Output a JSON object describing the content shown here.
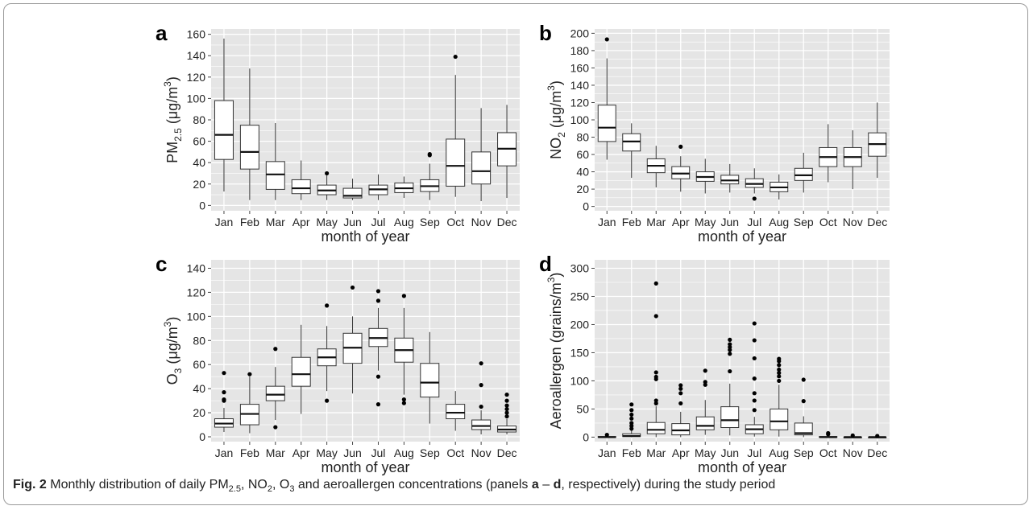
{
  "caption": {
    "figure_label": "Fig. 2",
    "parts": [
      "Monthly distribution of daily PM",
      "2.5",
      ", NO",
      "2",
      ", O",
      "3",
      " and aeroallergen concentrations (panels ",
      "a",
      " – ",
      "d",
      ", respectively) during the study period"
    ]
  },
  "colors": {
    "panel_background": "#e5e5e5",
    "gridline": "#ffffff",
    "box_fill": "#ffffff",
    "box_stroke": "#333333",
    "text": "#222222",
    "outlier": "#000000"
  },
  "chart_data": [
    {
      "type": "box",
      "panel_letter": "a",
      "xlabel": "month of year",
      "ylabel": {
        "base": "PM",
        "sub": "2.5",
        "mid": " (μg/m",
        "sup": "3",
        "end": ")"
      },
      "categories": [
        "Jan",
        "Feb",
        "Mar",
        "Apr",
        "May",
        "Jun",
        "Jul",
        "Aug",
        "Sep",
        "Oct",
        "Nov",
        "Dec"
      ],
      "ylim": [
        -5,
        165
      ],
      "yticks": [
        "0",
        "20",
        "40",
        "60",
        "80",
        "100",
        "120",
        "140",
        "160"
      ],
      "ytick_values": [
        0,
        20,
        40,
        60,
        80,
        100,
        120,
        140,
        160
      ],
      "boxes": [
        {
          "min": 13,
          "q1": 43,
          "median": 66,
          "q3": 98,
          "max": 156,
          "outliers": []
        },
        {
          "min": 5,
          "q1": 34,
          "median": 50,
          "q3": 75,
          "max": 128,
          "outliers": []
        },
        {
          "min": 5,
          "q1": 15,
          "median": 29,
          "q3": 41,
          "max": 77,
          "outliers": []
        },
        {
          "min": 5,
          "q1": 11,
          "median": 16,
          "q3": 24,
          "max": 42,
          "outliers": []
        },
        {
          "min": 5,
          "q1": 10,
          "median": 14,
          "q3": 19,
          "max": 28,
          "outliers": [
            30
          ]
        },
        {
          "min": 5,
          "q1": 7,
          "median": 9,
          "q3": 16,
          "max": 25,
          "outliers": []
        },
        {
          "min": 5,
          "q1": 10,
          "median": 15,
          "q3": 19,
          "max": 29,
          "outliers": []
        },
        {
          "min": 7,
          "q1": 12,
          "median": 16,
          "q3": 21,
          "max": 27,
          "outliers": []
        },
        {
          "min": 5,
          "q1": 13,
          "median": 18,
          "q3": 24,
          "max": 39,
          "outliers": [
            47,
            48
          ]
        },
        {
          "min": 8,
          "q1": 18,
          "median": 37,
          "q3": 62,
          "max": 122,
          "outliers": [
            139
          ]
        },
        {
          "min": 4,
          "q1": 20,
          "median": 32,
          "q3": 50,
          "max": 91,
          "outliers": []
        },
        {
          "min": 7,
          "q1": 37,
          "median": 53,
          "q3": 68,
          "max": 94,
          "outliers": []
        }
      ]
    },
    {
      "type": "box",
      "panel_letter": "b",
      "xlabel": "month of year",
      "ylabel": {
        "base": "NO",
        "sub": "2",
        "mid": " (μg/m",
        "sup": "3",
        "end": ")"
      },
      "categories": [
        "Jan",
        "Feb",
        "Mar",
        "Apr",
        "May",
        "Jun",
        "Jul",
        "Aug",
        "Sep",
        "Oct",
        "Nov",
        "Dec"
      ],
      "ylim": [
        -5,
        205
      ],
      "yticks": [
        "0",
        "20",
        "40",
        "60",
        "80",
        "100",
        "120",
        "140",
        "160",
        "180",
        "200"
      ],
      "ytick_values": [
        0,
        20,
        40,
        60,
        80,
        100,
        120,
        140,
        160,
        180,
        200
      ],
      "boxes": [
        {
          "min": 54,
          "q1": 75,
          "median": 91,
          "q3": 117,
          "max": 171,
          "outliers": [
            193
          ]
        },
        {
          "min": 33,
          "q1": 64,
          "median": 75,
          "q3": 84,
          "max": 96,
          "outliers": []
        },
        {
          "min": 22,
          "q1": 39,
          "median": 47,
          "q3": 55,
          "max": 70,
          "outliers": []
        },
        {
          "min": 17,
          "q1": 32,
          "median": 38,
          "q3": 46,
          "max": 58,
          "outliers": [
            69
          ]
        },
        {
          "min": 15,
          "q1": 29,
          "median": 34,
          "q3": 40,
          "max": 55,
          "outliers": []
        },
        {
          "min": 16,
          "q1": 26,
          "median": 30,
          "q3": 36,
          "max": 49,
          "outliers": []
        },
        {
          "min": 15,
          "q1": 22,
          "median": 26,
          "q3": 32,
          "max": 44,
          "outliers": [
            9
          ]
        },
        {
          "min": 8,
          "q1": 17,
          "median": 22,
          "q3": 28,
          "max": 37,
          "outliers": []
        },
        {
          "min": 16,
          "q1": 30,
          "median": 36,
          "q3": 44,
          "max": 62,
          "outliers": []
        },
        {
          "min": 28,
          "q1": 46,
          "median": 57,
          "q3": 68,
          "max": 95,
          "outliers": []
        },
        {
          "min": 20,
          "q1": 46,
          "median": 57,
          "q3": 68,
          "max": 88,
          "outliers": []
        },
        {
          "min": 33,
          "q1": 58,
          "median": 72,
          "q3": 85,
          "max": 120,
          "outliers": []
        }
      ]
    },
    {
      "type": "box",
      "panel_letter": "c",
      "xlabel": "month of year",
      "ylabel": {
        "base": "O",
        "sub": "3",
        "mid": " (μg/m",
        "sup": "3",
        "end": ")"
      },
      "categories": [
        "Jan",
        "Feb",
        "Mar",
        "Apr",
        "May",
        "Jun",
        "Jul",
        "Aug",
        "Sep",
        "Oct",
        "Nov",
        "Dec"
      ],
      "ylim": [
        -4,
        147
      ],
      "yticks": [
        "0",
        "20",
        "40",
        "60",
        "80",
        "100",
        "120",
        "140"
      ],
      "ytick_values": [
        0,
        20,
        40,
        60,
        80,
        100,
        120,
        140
      ],
      "boxes": [
        {
          "min": 4,
          "q1": 8,
          "median": 11,
          "q3": 15,
          "max": 24,
          "outliers": [
            30,
            31,
            37,
            53
          ]
        },
        {
          "min": 3,
          "q1": 10,
          "median": 19,
          "q3": 27,
          "max": 50,
          "outliers": [
            52
          ]
        },
        {
          "min": 14,
          "q1": 30,
          "median": 35,
          "q3": 42,
          "max": 58,
          "outliers": [
            8,
            73
          ]
        },
        {
          "min": 19,
          "q1": 42,
          "median": 52,
          "q3": 66,
          "max": 93,
          "outliers": []
        },
        {
          "min": 38,
          "q1": 59,
          "median": 66,
          "q3": 73,
          "max": 92,
          "outliers": [
            30,
            109
          ]
        },
        {
          "min": 36,
          "q1": 61,
          "median": 74,
          "q3": 86,
          "max": 100,
          "outliers": [
            124
          ]
        },
        {
          "min": 55,
          "q1": 75,
          "median": 82,
          "q3": 90,
          "max": 107,
          "outliers": [
            27,
            50,
            113,
            121
          ]
        },
        {
          "min": 35,
          "q1": 62,
          "median": 72,
          "q3": 82,
          "max": 107,
          "outliers": [
            28,
            31,
            117
          ]
        },
        {
          "min": 11,
          "q1": 33,
          "median": 45,
          "q3": 61,
          "max": 87,
          "outliers": []
        },
        {
          "min": 5,
          "q1": 15,
          "median": 20,
          "q3": 27,
          "max": 38,
          "outliers": []
        },
        {
          "min": 2,
          "q1": 6,
          "median": 9,
          "q3": 14,
          "max": 22,
          "outliers": [
            25,
            43,
            61
          ]
        },
        {
          "min": 2,
          "q1": 4,
          "median": 6,
          "q3": 9,
          "max": 15,
          "outliers": [
            17,
            20,
            23,
            26,
            30,
            35
          ]
        }
      ]
    },
    {
      "type": "box",
      "panel_letter": "d",
      "xlabel": "month of year",
      "ylabel": {
        "base": "Aeroallergen",
        "sub": "",
        "mid": " (grains/m",
        "sup": "3",
        "end": ")"
      },
      "categories": [
        "Jan",
        "Feb",
        "Mar",
        "Apr",
        "May",
        "Jun",
        "Jul",
        "Aug",
        "Sep",
        "Oct",
        "Nov",
        "Dec"
      ],
      "ylim": [
        -8,
        315
      ],
      "yticks": [
        "0",
        "50",
        "100",
        "150",
        "200",
        "250",
        "300"
      ],
      "ytick_values": [
        0,
        50,
        100,
        150,
        200,
        250,
        300
      ],
      "boxes": [
        {
          "min": 0,
          "q1": 0,
          "median": 0,
          "q3": 1,
          "max": 2,
          "outliers": [
            4
          ]
        },
        {
          "min": 0,
          "q1": 1,
          "median": 2,
          "q3": 6,
          "max": 12,
          "outliers": [
            15,
            20,
            25,
            33,
            40,
            48,
            58
          ]
        },
        {
          "min": 0,
          "q1": 6,
          "median": 13,
          "q3": 26,
          "max": 55,
          "outliers": [
            60,
            65,
            103,
            107,
            115,
            215,
            273
          ]
        },
        {
          "min": 0,
          "q1": 4,
          "median": 12,
          "q3": 24,
          "max": 45,
          "outliers": [
            60,
            78,
            86,
            92
          ]
        },
        {
          "min": 4,
          "q1": 13,
          "median": 20,
          "q3": 36,
          "max": 66,
          "outliers": [
            93,
            98,
            118
          ]
        },
        {
          "min": 3,
          "q1": 17,
          "median": 30,
          "q3": 54,
          "max": 95,
          "outliers": [
            117,
            148,
            155,
            160,
            165,
            173
          ]
        },
        {
          "min": 1,
          "q1": 6,
          "median": 14,
          "q3": 22,
          "max": 36,
          "outliers": [
            48,
            65,
            78,
            104,
            140,
            172,
            202
          ]
        },
        {
          "min": 1,
          "q1": 13,
          "median": 28,
          "q3": 50,
          "max": 93,
          "outliers": [
            100,
            108,
            114,
            120,
            128,
            135,
            139
          ]
        },
        {
          "min": 0,
          "q1": 4,
          "median": 7,
          "q3": 25,
          "max": 37,
          "outliers": [
            64,
            102
          ]
        },
        {
          "min": 0,
          "q1": 0,
          "median": 0,
          "q3": 1,
          "max": 2,
          "outliers": [
            5,
            7
          ]
        },
        {
          "min": 0,
          "q1": 0,
          "median": 0,
          "q3": 0,
          "max": 1,
          "outliers": [
            3
          ]
        },
        {
          "min": 0,
          "q1": 0,
          "median": 0,
          "q3": 0,
          "max": 1,
          "outliers": [
            2
          ]
        }
      ]
    }
  ]
}
